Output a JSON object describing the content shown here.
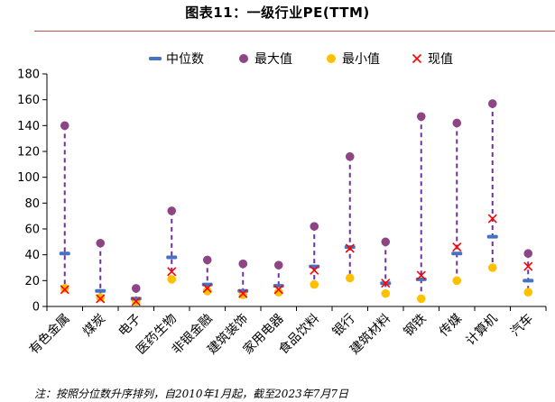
{
  "header": {
    "title": "图表11：一级行业PE(TTM)"
  },
  "footnote": "注：按照分位数升序排列，自2010年1月起，截至2023年7月7日",
  "colors": {
    "median": "#4472c4",
    "max": "#8e4585",
    "min": "#ffc000",
    "current": "#ff0000",
    "range_line": "#7030a0",
    "title_rule": "#c0504d"
  },
  "chart_data": {
    "type": "scatter",
    "title": "",
    "xlabel": "",
    "ylabel": "",
    "ylim": [
      0,
      180
    ],
    "yticks": [
      "0",
      "20",
      "40",
      "60",
      "80",
      "100",
      "120",
      "140",
      "160",
      "180"
    ],
    "legend_position": "top",
    "categories": [
      "有色金属",
      "煤炭",
      "电子",
      "医药生物",
      "非银金融",
      "建筑装饰",
      "家用电器",
      "食品饮料",
      "银行",
      "建筑材料",
      "钢铁",
      "传媒",
      "计算机",
      "汽车"
    ],
    "series": [
      {
        "name": "中位数",
        "marker": "dash",
        "values": [
          41,
          12,
          6,
          38,
          17,
          12,
          16,
          31,
          46,
          18,
          21,
          41,
          54,
          20
        ]
      },
      {
        "name": "最大值",
        "marker": "circle",
        "values": [
          140,
          49,
          14,
          74,
          36,
          33,
          32,
          62,
          116,
          50,
          147,
          142,
          157,
          41
        ]
      },
      {
        "name": "最小值",
        "marker": "circle",
        "values": [
          14,
          7,
          4,
          21,
          12,
          9,
          11,
          17,
          22,
          10,
          6,
          20,
          30,
          11
        ]
      },
      {
        "name": "现值",
        "marker": "x",
        "values": [
          13,
          6,
          4,
          27,
          14,
          10,
          13,
          28,
          45,
          18,
          24,
          46,
          68,
          31
        ]
      }
    ]
  }
}
